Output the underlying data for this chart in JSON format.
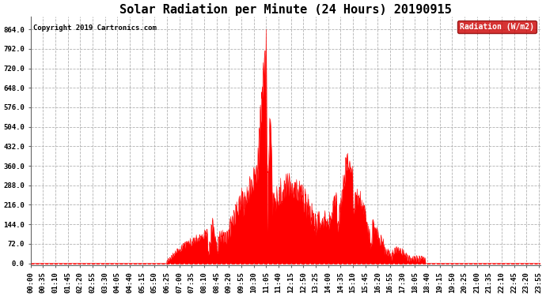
{
  "title": "Solar Radiation per Minute (24 Hours) 20190915",
  "copyright_text": "Copyright 2019 Cartronics.com",
  "legend_label": "Radiation (W/m2)",
  "y_ticks": [
    0.0,
    72.0,
    144.0,
    216.0,
    288.0,
    360.0,
    432.0,
    504.0,
    576.0,
    648.0,
    720.0,
    792.0,
    864.0
  ],
  "ylim": [
    -8,
    910
  ],
  "fill_color": "#ff0000",
  "line_color": "#ff0000",
  "background_color": "#ffffff",
  "grid_color": "#aaaaaa",
  "title_fontsize": 11,
  "tick_fontsize": 6.5,
  "legend_bg": "#cc0000",
  "legend_text_color": "#ffffff",
  "x_tick_interval_minutes": 35
}
